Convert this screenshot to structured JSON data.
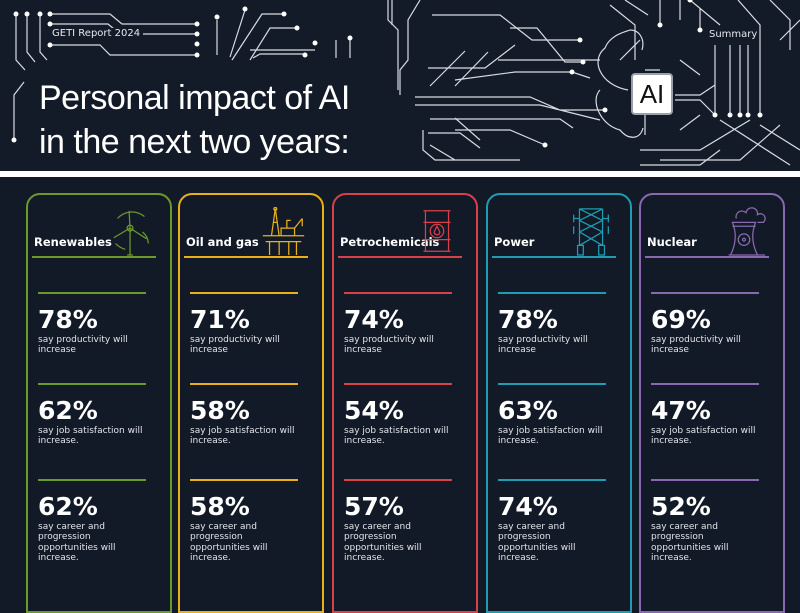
{
  "header": {
    "report_label": "GETI Report 2024",
    "summary_link": "Summary",
    "title_line1": "Personal impact of AI",
    "title_line2": "in the next two years:",
    "chip_label": "AI"
  },
  "sectors": [
    {
      "name": "Renewables",
      "icon": "wind-turbine-icon",
      "color": "#6a9a2c",
      "stats": [
        {
          "value": "78%",
          "text": "say productivity will increase"
        },
        {
          "value": "62%",
          "text": "say job satisfaction will increase."
        },
        {
          "value": "62%",
          "text": "say career and progression opportunities will increase."
        }
      ]
    },
    {
      "name": "Oil and gas",
      "icon": "oil-rig-icon",
      "color": "#e8b11c",
      "stats": [
        {
          "value": "71%",
          "text": "say productivity will increase"
        },
        {
          "value": "58%",
          "text": "say job satisfaction will increase."
        },
        {
          "value": "58%",
          "text": "say career and progression opportunities will increase."
        }
      ]
    },
    {
      "name": "Petrochemicals",
      "icon": "oil-barrel-icon",
      "color": "#d8414a",
      "stats": [
        {
          "value": "74%",
          "text": "say productivity will increase"
        },
        {
          "value": "54%",
          "text": "say job satisfaction will increase."
        },
        {
          "value": "57%",
          "text": "say career and progression opportunities will increase."
        }
      ]
    },
    {
      "name": "Power",
      "icon": "pylon-icon",
      "color": "#1e9db2",
      "stats": [
        {
          "value": "78%",
          "text": "say productivity will increase"
        },
        {
          "value": "63%",
          "text": "say job satisfaction will increase."
        },
        {
          "value": "74%",
          "text": "say career and progression opportunities will increase."
        }
      ]
    },
    {
      "name": "Nuclear",
      "icon": "cooling-tower-icon",
      "color": "#8a68b0",
      "stats": [
        {
          "value": "69%",
          "text": "say productivity will increase"
        },
        {
          "value": "47%",
          "text": "say job satisfaction will increase."
        },
        {
          "value": "52%",
          "text": "say career and progression opportunities will increase."
        }
      ]
    }
  ]
}
